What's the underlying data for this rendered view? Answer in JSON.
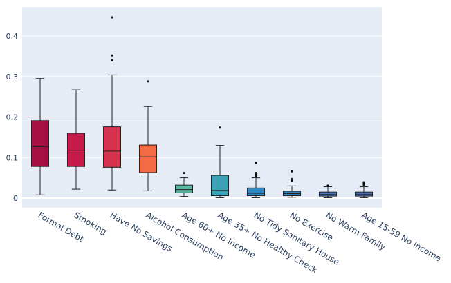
{
  "chart_data": {
    "type": "box",
    "title": "",
    "xlabel": "",
    "ylabel": "",
    "ylim": [
      -0.025,
      0.47
    ],
    "yticks": [
      0,
      0.1,
      0.2,
      0.3,
      0.4
    ],
    "ytick_labels": [
      "0",
      "0.1",
      "0.2",
      "0.3",
      "0.4"
    ],
    "grid": true,
    "legend": "none",
    "background": "#e5ecf6",
    "categories": [
      {
        "name": "Formal Debt",
        "color": "#a50f42",
        "whisker_low": 0.008,
        "q1": 0.078,
        "median": 0.127,
        "q3": 0.191,
        "whisker_high": 0.295,
        "outliers": []
      },
      {
        "name": "Smoking",
        "color": "#c51b4b",
        "whisker_low": 0.022,
        "q1": 0.078,
        "median": 0.118,
        "q3": 0.16,
        "whisker_high": 0.267,
        "outliers": []
      },
      {
        "name": "Have No Savings",
        "color": "#d5334d",
        "whisker_low": 0.02,
        "q1": 0.076,
        "median": 0.116,
        "q3": 0.176,
        "whisker_high": 0.304,
        "outliers": [
          0.34,
          0.352,
          0.446
        ]
      },
      {
        "name": "Alcohol Consumption",
        "color": "#f36b43",
        "whisker_low": 0.018,
        "q1": 0.063,
        "median": 0.102,
        "q3": 0.131,
        "whisker_high": 0.226,
        "outliers": [
          0.288
        ]
      },
      {
        "name": "Age 60+ No Income",
        "color": "#59b9a0",
        "whisker_low": 0.004,
        "q1": 0.013,
        "median": 0.021,
        "q3": 0.032,
        "whisker_high": 0.05,
        "outliers": [
          0.062
        ]
      },
      {
        "name": "Age 35+ No Healthy Check",
        "color": "#3fa1b6",
        "whisker_low": 0.001,
        "q1": 0.006,
        "median": 0.019,
        "q3": 0.056,
        "whisker_high": 0.13,
        "outliers": [
          0.174
        ]
      },
      {
        "name": "No Tidy Sanitary House",
        "color": "#2f87c0",
        "whisker_low": 0.001,
        "q1": 0.006,
        "median": 0.012,
        "q3": 0.025,
        "whisker_high": 0.05,
        "outliers": [
          0.055,
          0.059,
          0.062,
          0.087
        ]
      },
      {
        "name": "No Exercise",
        "color": "#3382c0",
        "whisker_low": 0.002,
        "q1": 0.006,
        "median": 0.011,
        "q3": 0.017,
        "whisker_high": 0.03,
        "outliers": [
          0.043,
          0.047,
          0.066
        ]
      },
      {
        "name": "No Warm Family",
        "color": "#4d79b8",
        "whisker_low": 0.001,
        "q1": 0.005,
        "median": 0.009,
        "q3": 0.015,
        "whisker_high": 0.028,
        "outliers": [
          0.031
        ]
      },
      {
        "name": "Age 15-59 No Income",
        "color": "#4e6eb2",
        "whisker_low": 0.001,
        "q1": 0.005,
        "median": 0.009,
        "q3": 0.015,
        "whisker_high": 0.028,
        "outliers": [
          0.033,
          0.036,
          0.039
        ]
      }
    ]
  }
}
